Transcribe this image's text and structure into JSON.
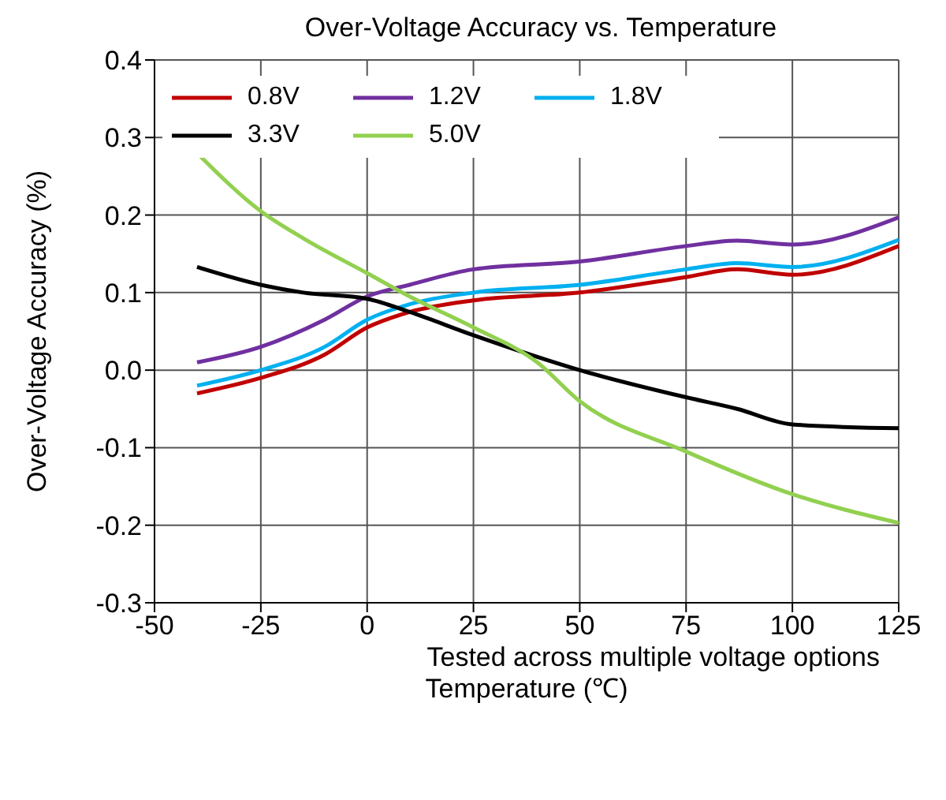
{
  "chart_data": {
    "type": "line",
    "title": "Over-Voltage Accuracy vs. Temperature",
    "xlabel": "Temperature (℃)",
    "ylabel": "Over-Voltage Accuracy (%)",
    "xlim": [
      -50,
      125
    ],
    "xticks": [
      -50,
      -25,
      {
        "value": 0,
        "label": "0"
      },
      25,
      50,
      75,
      100,
      125
    ],
    "ylim": [
      -0.3,
      0.4
    ],
    "yticks": [
      -0.3,
      -0.2,
      -0.1,
      {
        "value": 0,
        "label": "0.0"
      },
      0.1,
      0.2,
      0.3,
      0.4
    ],
    "grid": true,
    "legend": "top left",
    "marker": "none",
    "line_style": "solid",
    "annotations": [
      "Tested across multiple voltage options"
    ],
    "series": [
      {
        "name": "0.8V",
        "color": "#c00000",
        "x": [
          -40,
          -25,
          -10,
          0,
          10,
          25,
          50,
          75,
          87,
          100,
          125
        ],
        "values": [
          -0.03,
          -0.01,
          0.02,
          0.055,
          0.075,
          0.09,
          0.1,
          0.12,
          0.13,
          0.123,
          0.16
        ]
      },
      {
        "name": "1.2V",
        "color": "#7030a0",
        "x": [
          -40,
          -25,
          -10,
          0,
          10,
          25,
          50,
          75,
          87,
          100,
          125
        ],
        "values": [
          0.01,
          0.03,
          0.065,
          0.095,
          0.11,
          0.13,
          0.14,
          0.16,
          0.167,
          0.162,
          0.197
        ]
      },
      {
        "name": "1.8V",
        "color": "#00b0f0",
        "x": [
          -40,
          -25,
          -10,
          0,
          10,
          25,
          50,
          75,
          87,
          100,
          125
        ],
        "values": [
          -0.02,
          0,
          0.03,
          0.065,
          0.085,
          0.1,
          0.11,
          0.13,
          0.138,
          0.133,
          0.168
        ]
      },
      {
        "name": "3.3V",
        "color": "#000000",
        "x": [
          -40,
          -25,
          -15,
          0,
          10,
          25,
          50,
          75,
          87,
          100,
          125
        ],
        "values": [
          0.133,
          0.11,
          0.1,
          0.092,
          0.075,
          0.045,
          0,
          -0.035,
          -0.05,
          -0.07,
          -0.075
        ]
      },
      {
        "name": "5.0V",
        "color": "#92d050",
        "x": [
          -40,
          -25,
          -15,
          0,
          10,
          25,
          40,
          50,
          75,
          100,
          125
        ],
        "values": [
          0.28,
          0.205,
          0.17,
          0.125,
          0.095,
          0.055,
          0.01,
          -0.04,
          -0.105,
          -0.16,
          -0.197
        ]
      }
    ]
  }
}
